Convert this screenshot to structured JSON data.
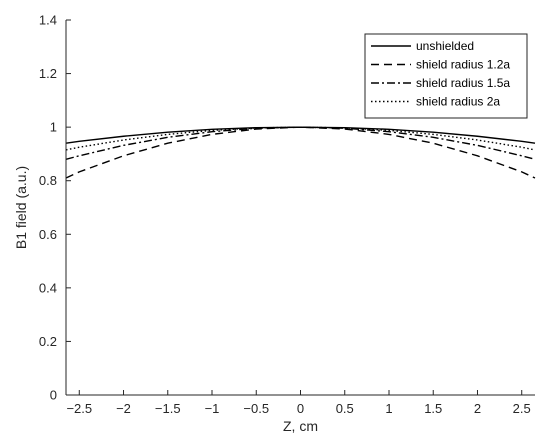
{
  "chart_data": {
    "type": "line",
    "title": "",
    "xlabel": "Z, cm",
    "ylabel": "B1 field (a.u.)",
    "xlim": [
      -2.65,
      2.65
    ],
    "ylim": [
      0,
      1.4
    ],
    "x_ticks": [
      -2.5,
      -2,
      -1.5,
      -1,
      -0.5,
      0,
      0.5,
      1,
      1.5,
      2,
      2.5
    ],
    "x_tick_labels": [
      "−2.5",
      "−2",
      "−1.5",
      "−1",
      "−0.5",
      "0",
      "0.5",
      "1",
      "1.5",
      "2",
      "2.5"
    ],
    "y_ticks": [
      0,
      0.2,
      0.4,
      0.6,
      0.8,
      1,
      1.2,
      1.4
    ],
    "y_tick_labels": [
      "0",
      "0.2",
      "0.4",
      "0.6",
      "0.8",
      "1",
      "1.2",
      "1.4"
    ],
    "grid": false,
    "legend_position": "top-right",
    "series": [
      {
        "name": "unshielded",
        "dash": "solid",
        "x": [
          -2.65,
          -2.5,
          -2,
          -1.5,
          -1,
          -0.5,
          0,
          0.5,
          1,
          1.5,
          2,
          2.5,
          2.65
        ],
        "y": [
          0.94,
          0.947,
          0.966,
          0.981,
          0.992,
          0.998,
          1.0,
          0.998,
          0.992,
          0.981,
          0.966,
          0.947,
          0.94
        ]
      },
      {
        "name": "shield radius 1.2a",
        "dash": "dashed",
        "x": [
          -2.65,
          -2.5,
          -2,
          -1.5,
          -1,
          -0.5,
          0,
          0.5,
          1,
          1.5,
          2,
          2.5,
          2.65
        ],
        "y": [
          0.81,
          0.833,
          0.893,
          0.94,
          0.973,
          0.993,
          1.0,
          0.993,
          0.973,
          0.94,
          0.893,
          0.833,
          0.81
        ]
      },
      {
        "name": "shield radius 1.5a",
        "dash": "dashdot",
        "x": [
          -2.65,
          -2.5,
          -2,
          -1.5,
          -1,
          -0.5,
          0,
          0.5,
          1,
          1.5,
          2,
          2.5,
          2.65
        ],
        "y": [
          0.88,
          0.893,
          0.932,
          0.962,
          0.983,
          0.996,
          1.0,
          0.996,
          0.983,
          0.962,
          0.932,
          0.893,
          0.88
        ]
      },
      {
        "name": "shield radius 2a",
        "dash": "dotted",
        "x": [
          -2.65,
          -2.5,
          -2,
          -1.5,
          -1,
          -0.5,
          0,
          0.5,
          1,
          1.5,
          2,
          2.5,
          2.65
        ],
        "y": [
          0.915,
          0.925,
          0.952,
          0.973,
          0.988,
          0.997,
          1.0,
          0.997,
          0.988,
          0.973,
          0.952,
          0.925,
          0.915
        ]
      }
    ],
    "colors": {
      "line": "#000000",
      "axis": "#262626",
      "background": "#ffffff"
    }
  }
}
